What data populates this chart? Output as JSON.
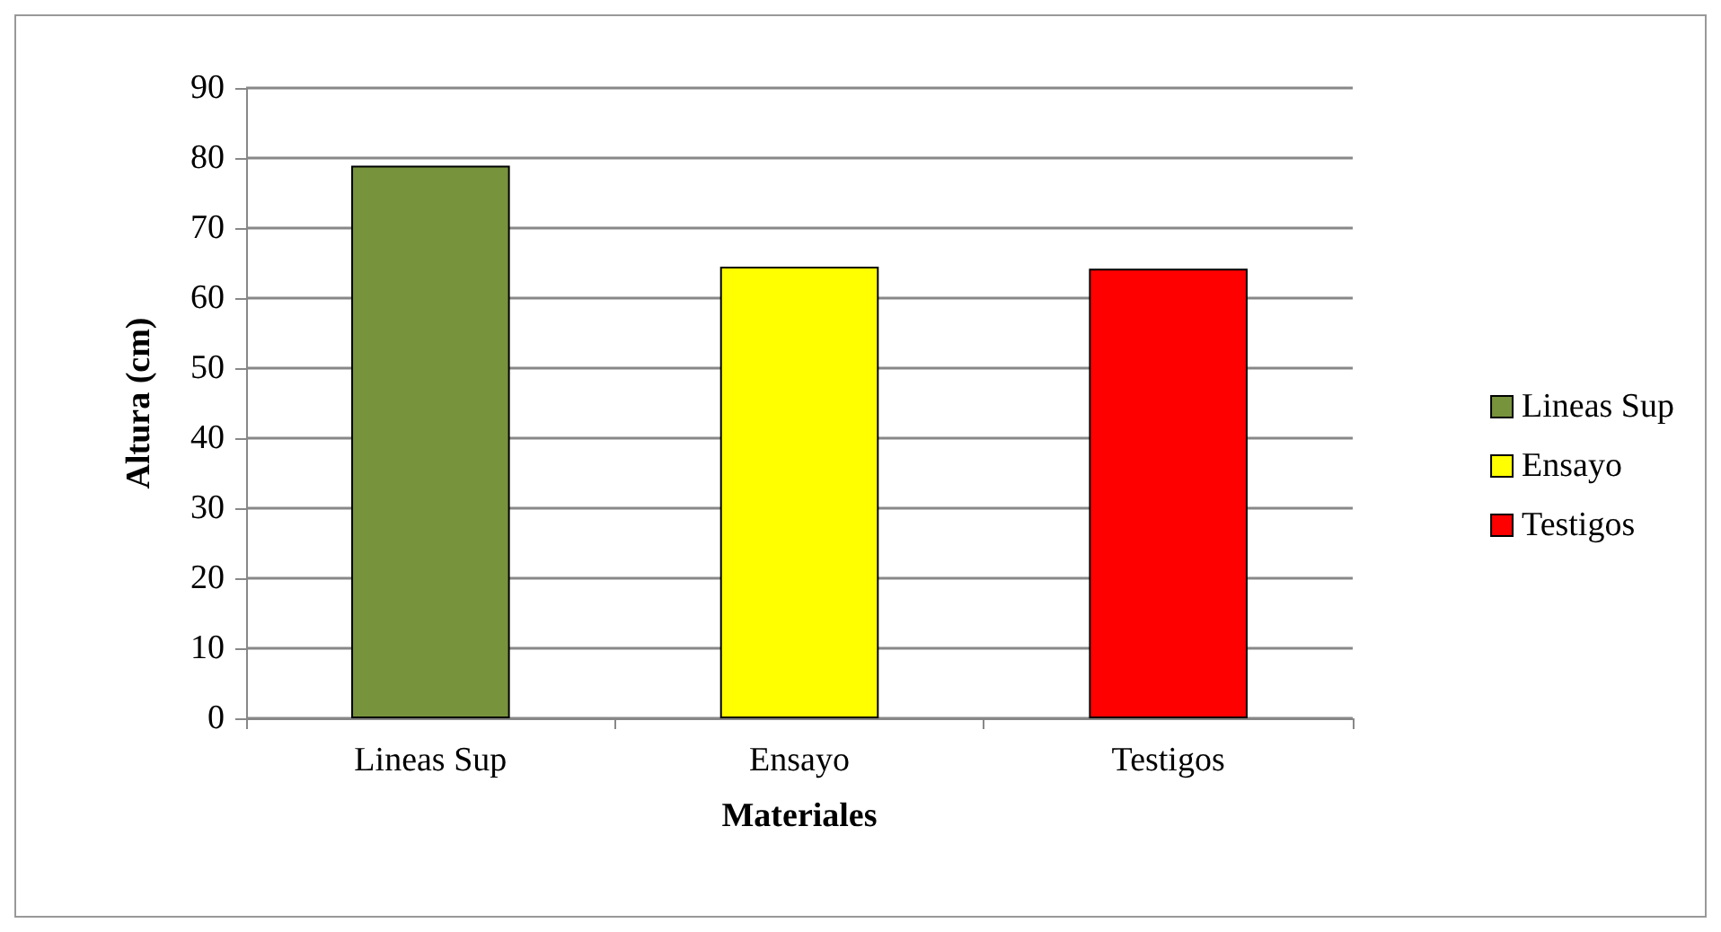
{
  "chart_data": {
    "type": "bar",
    "xlabel": "Materiales",
    "ylabel": "Altura (cm)",
    "categories": [
      "Lineas Sup",
      "Ensayo",
      "Testigos"
    ],
    "series": [
      {
        "name": "Lineas Sup",
        "color": "#77933c",
        "values": [
          78.9,
          null,
          null
        ]
      },
      {
        "name": "Ensayo",
        "color": "#ffff00",
        "values": [
          null,
          64.5,
          null
        ]
      },
      {
        "name": "Testigos",
        "color": "#ff0000",
        "values": [
          null,
          null,
          64.2
        ]
      }
    ],
    "ylim": [
      0,
      90
    ],
    "yticks": [
      0,
      10,
      20,
      30,
      40,
      50,
      60,
      70,
      80,
      90
    ],
    "grid": "y",
    "legend": "right"
  }
}
